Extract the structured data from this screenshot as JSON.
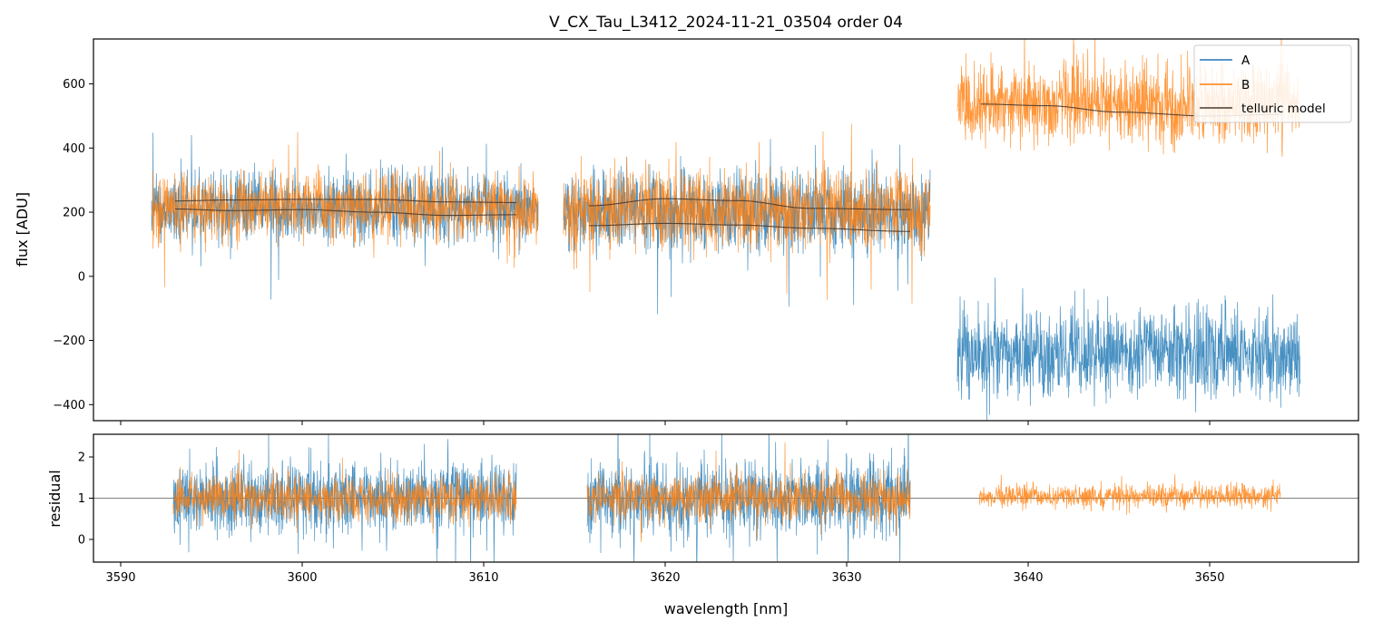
{
  "chart_data": [
    {
      "panel": "top",
      "type": "line",
      "title": "V_CX_Tau_L3412_2024-11-21_03504  order 04",
      "xlabel": "",
      "ylabel": "flux [ADU]",
      "xlim": [
        3588.5,
        3658.2
      ],
      "ylim": [
        -450,
        740
      ],
      "yticks": [
        -400,
        -200,
        0,
        200,
        400,
        600
      ],
      "yticklabels": [
        "−400",
        "−200",
        "0",
        "200",
        "400",
        "600"
      ],
      "xticks": [
        3590,
        3600,
        3610,
        3620,
        3630,
        3640,
        3650
      ],
      "series": [
        {
          "name": "A",
          "color": "#1f77b4",
          "segments": [
            {
              "x0": 3591.7,
              "x1": 3613.0,
              "mean": 215,
              "noise": 75
            },
            {
              "x0": 3614.4,
              "x1": 3634.6,
              "mean": 205,
              "noise": 90
            },
            {
              "x0": 3636.1,
              "x1": 3655.0,
              "mean": -240,
              "noise": 95
            }
          ]
        },
        {
          "name": "B",
          "color": "#ff7f0e",
          "segments": [
            {
              "x0": 3591.7,
              "x1": 3613.0,
              "mean": 215,
              "noise": 75
            },
            {
              "x0": 3614.4,
              "x1": 3634.6,
              "mean": 205,
              "noise": 85
            },
            {
              "x0": 3636.1,
              "x1": 3655.0,
              "mean": 540,
              "noise": 90
            }
          ]
        },
        {
          "name": "telluric model",
          "color": "#4a3a2e",
          "curves": [
            {
              "x": [
                3593,
                3596,
                3600,
                3604,
                3608,
                3611.8
              ],
              "y": [
                210,
                205,
                208,
                200,
                190,
                192
              ]
            },
            {
              "x": [
                3593,
                3596,
                3600,
                3604,
                3608,
                3611.8
              ],
              "y": [
                235,
                238,
                240,
                240,
                232,
                230
              ]
            },
            {
              "x": [
                3615.8,
                3620,
                3624,
                3628,
                3633.5
              ],
              "y": [
                220,
                242,
                236,
                212,
                208
              ]
            },
            {
              "x": [
                3615.8,
                3620,
                3624,
                3628,
                3633.5
              ],
              "y": [
                158,
                165,
                160,
                150,
                140
              ]
            },
            {
              "x": [
                3637.4,
                3641,
                3645,
                3650,
                3654
              ],
              "y": [
                537,
                532,
                512,
                500,
                505
              ]
            }
          ]
        }
      ],
      "legend": {
        "position": "top-right",
        "entries": [
          "A",
          "B",
          "telluric model"
        ]
      }
    },
    {
      "panel": "bottom",
      "type": "line",
      "title": "",
      "xlabel": "wavelength [nm]",
      "ylabel": "residual",
      "xlim": [
        3588.5,
        3658.2
      ],
      "ylim": [
        -0.55,
        2.55
      ],
      "yticks": [
        0,
        1,
        2
      ],
      "yticklabels": [
        "0",
        "1",
        "2"
      ],
      "xticks": [
        3590,
        3600,
        3610,
        3620,
        3630,
        3640,
        3650
      ],
      "xticklabels": [
        "3590",
        "3600",
        "3610",
        "3620",
        "3630",
        "3640",
        "3650"
      ],
      "reference_line": 1,
      "series": [
        {
          "name": "A",
          "color": "#1f77b4",
          "segments": [
            {
              "x0": 3592.9,
              "x1": 3611.8,
              "mean": 1.0,
              "noise": 0.62
            },
            {
              "x0": 3615.7,
              "x1": 3633.5,
              "mean": 1.0,
              "noise": 0.66
            }
          ]
        },
        {
          "name": "B",
          "color": "#ff7f0e",
          "segments": [
            {
              "x0": 3592.9,
              "x1": 3611.8,
              "mean": 1.0,
              "noise": 0.38
            },
            {
              "x0": 3615.7,
              "x1": 3633.5,
              "mean": 1.0,
              "noise": 0.4
            },
            {
              "x0": 3637.3,
              "x1": 3653.9,
              "mean": 1.05,
              "noise": 0.2
            }
          ]
        }
      ]
    }
  ]
}
